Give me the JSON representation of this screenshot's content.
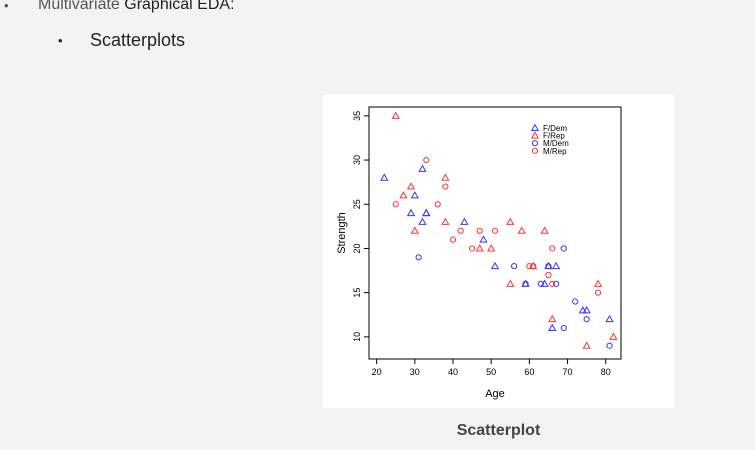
{
  "slide": {
    "bullet1_prefix": "Multivariate ",
    "bullet1_emph": "Graphical EDA:",
    "bullet2": "Scatterplots",
    "bullet_glyph": "•",
    "caption": "Scatterplot"
  },
  "chart_data": {
    "type": "scatter",
    "title": "",
    "xlabel": "Age",
    "ylabel": "Strength",
    "xlim": [
      18,
      84
    ],
    "ylim": [
      7.5,
      36
    ],
    "xticks": [
      20,
      30,
      40,
      50,
      60,
      70,
      80
    ],
    "yticks": [
      10,
      15,
      20,
      25,
      30,
      35
    ],
    "grid": false,
    "legend_position": "top-right",
    "series": [
      {
        "name": "F/Dem",
        "marker": "triangle",
        "color": "#3333ff",
        "points": [
          [
            22,
            28
          ],
          [
            29,
            24
          ],
          [
            30,
            26
          ],
          [
            32,
            23
          ],
          [
            32,
            29
          ],
          [
            33,
            24
          ],
          [
            33,
            24
          ],
          [
            43,
            23
          ],
          [
            48,
            21
          ],
          [
            51,
            18
          ],
          [
            59,
            16
          ],
          [
            64,
            16
          ],
          [
            65,
            18
          ],
          [
            66,
            11
          ],
          [
            67,
            18
          ],
          [
            74,
            13
          ],
          [
            75,
            13
          ],
          [
            81,
            12
          ]
        ]
      },
      {
        "name": "F/Rep",
        "marker": "triangle",
        "color": "#ff3333",
        "points": [
          [
            25,
            35
          ],
          [
            27,
            26
          ],
          [
            29,
            27
          ],
          [
            30,
            22
          ],
          [
            38,
            28
          ],
          [
            38,
            23
          ],
          [
            47,
            20
          ],
          [
            50,
            20
          ],
          [
            55,
            23
          ],
          [
            55,
            16
          ],
          [
            58,
            22
          ],
          [
            61,
            18
          ],
          [
            64,
            22
          ],
          [
            66,
            12
          ],
          [
            75,
            9
          ],
          [
            78,
            16
          ],
          [
            82,
            10
          ]
        ]
      },
      {
        "name": "M/Dem",
        "marker": "circle",
        "color": "#3333ff",
        "points": [
          [
            31,
            19
          ],
          [
            56,
            18
          ],
          [
            59,
            16
          ],
          [
            63,
            16
          ],
          [
            65,
            18
          ],
          [
            67,
            16
          ],
          [
            69,
            20
          ],
          [
            69,
            11
          ],
          [
            72,
            14
          ],
          [
            75,
            12
          ],
          [
            81,
            9
          ]
        ]
      },
      {
        "name": "M/Rep",
        "marker": "circle",
        "color": "#ff3333",
        "points": [
          [
            25,
            25
          ],
          [
            33,
            30
          ],
          [
            36,
            25
          ],
          [
            38,
            27
          ],
          [
            40,
            21
          ],
          [
            42,
            22
          ],
          [
            45,
            20
          ],
          [
            47,
            22
          ],
          [
            51,
            22
          ],
          [
            60,
            18
          ],
          [
            61,
            18
          ],
          [
            65,
            17
          ],
          [
            66,
            20
          ],
          [
            66,
            16
          ],
          [
            78,
            15
          ]
        ]
      }
    ]
  }
}
